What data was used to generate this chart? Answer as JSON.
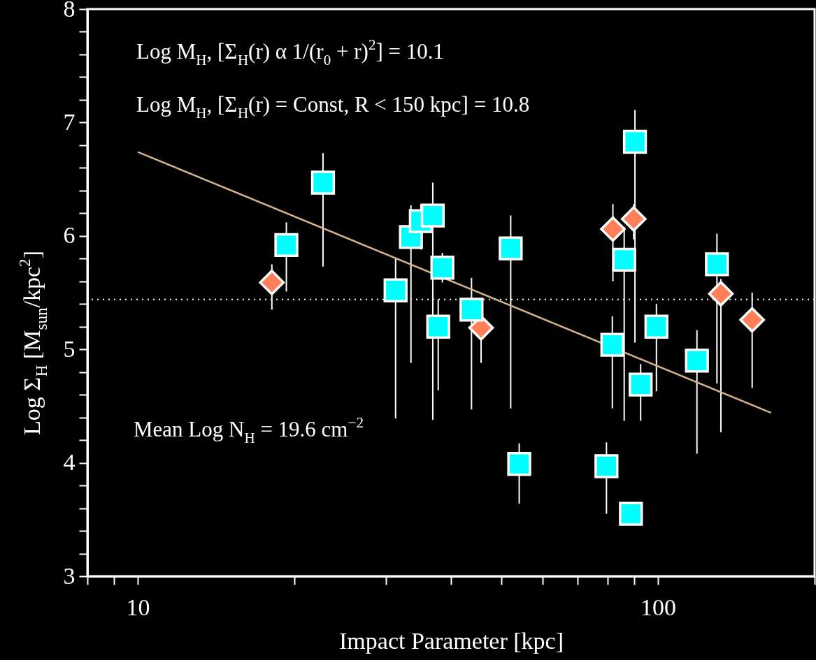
{
  "chart_data": {
    "type": "scatter",
    "xlabel": "Impact Parameter [kpc]",
    "ylabel": "Log Σ$_{H}$ [M$_{sun}$/kpc$^{2}$]",
    "log": "x",
    "xlim": [
      8,
      200
    ],
    "xticks": [
      {
        "value": 8,
        "label": null
      },
      {
        "value": 9,
        "label": null
      },
      10,
      {
        "value": 20,
        "label": null
      },
      {
        "value": 30,
        "label": null
      },
      {
        "value": 40,
        "label": null
      },
      {
        "value": 50,
        "label": null
      },
      {
        "value": 60,
        "label": null
      },
      {
        "value": 70,
        "label": null
      },
      {
        "value": 80,
        "label": null
      },
      {
        "value": 90,
        "label": null
      },
      100,
      {
        "value": 200,
        "label": null
      }
    ],
    "ylim": [
      3,
      8
    ],
    "yticks": [
      3,
      {
        "value": 3.2,
        "label": null
      },
      {
        "value": 3.4,
        "label": null
      },
      {
        "value": 3.6,
        "label": null
      },
      {
        "value": 3.8,
        "label": null
      },
      4,
      {
        "value": 4.2,
        "label": null
      },
      {
        "value": 4.4,
        "label": null
      },
      {
        "value": 4.6,
        "label": null
      },
      {
        "value": 4.8,
        "label": null
      },
      5,
      {
        "value": 5.2,
        "label": null
      },
      {
        "value": 5.4,
        "label": null
      },
      {
        "value": 5.6,
        "label": null
      },
      {
        "value": 5.8,
        "label": null
      },
      6,
      {
        "value": 6.2,
        "label": null
      },
      {
        "value": 6.4,
        "label": null
      },
      {
        "value": 6.6,
        "label": null
      },
      {
        "value": 6.8,
        "label": null
      },
      7,
      {
        "value": 7.2,
        "label": null
      },
      {
        "value": 7.4,
        "label": null
      },
      {
        "value": 7.6,
        "label": null
      },
      {
        "value": 7.8,
        "label": null
      },
      8
    ],
    "grid": false,
    "legend": false,
    "ref_lines": [
      {
        "axis": "y",
        "value": 5.44,
        "color": "#ffffff",
        "line_style": "dotted"
      }
    ],
    "annotations": [
      "Log M$_{H}$, [Σ$_{H}$(r) α 1/(r$_{0}$ + r)$^{2}$] = 10.1",
      "Log M$_{H}$, [Σ$_{H}$(r) = Const, R < 150 kpc] =  10.8",
      "Mean Log N$_{H}$ = 19.6 cm$^{−2}$"
    ],
    "series": [
      {
        "type": "line",
        "color": "#d2b48c",
        "marker": "none",
        "line_style": "solid",
        "x": [
          10,
          165
        ],
        "values": [
          6.74,
          4.44
        ]
      },
      {
        "type": "scatter",
        "color": "#ff7f59",
        "marker": "diamond",
        "x": [
          18.1,
          45.7,
          81.9,
          89.8,
          132.1,
          151.7
        ],
        "values": [
          5.59,
          5.19,
          6.06,
          6.15,
          5.49,
          5.26
        ],
        "errors": [
          [
            5.35,
            5.75
          ],
          [
            4.88,
            5.35
          ],
          [
            5.6,
            6.28
          ],
          [
            5.97,
            6.28
          ],
          [
            4.27,
            5.62
          ],
          [
            4.66,
            5.5
          ]
        ]
      },
      {
        "type": "scatter",
        "color": "#00ffff",
        "marker": "square",
        "x": [
          19.3,
          22.7,
          31.3,
          33.5,
          35.0,
          36.9,
          37.8,
          38.5,
          43.8,
          52.1,
          54.1,
          79.6,
          81.7,
          86.1,
          88.7,
          90.3,
          92.6,
          99.3,
          118.8,
          129.8
        ],
        "values": [
          5.92,
          6.47,
          5.52,
          5.99,
          6.13,
          6.18,
          5.2,
          5.72,
          5.35,
          5.89,
          3.99,
          3.97,
          5.04,
          5.79,
          3.55,
          6.83,
          4.69,
          5.2,
          4.9,
          5.75
        ],
        "errors": [
          [
            5.51,
            6.12
          ],
          [
            5.73,
            6.73
          ],
          [
            4.39,
            5.8
          ],
          [
            4.88,
            6.27
          ],
          [
            5.88,
            6.28
          ],
          [
            4.38,
            6.47
          ],
          [
            4.64,
            5.44
          ],
          [
            5.59,
            5.85
          ],
          [
            4.47,
            5.63
          ],
          [
            4.48,
            6.18
          ],
          [
            3.64,
            4.17
          ],
          [
            3.55,
            4.18
          ],
          [
            4.48,
            5.29
          ],
          [
            4.37,
            6.08
          ],
          null,
          [
            5.06,
            7.11
          ],
          [
            4.37,
            4.87
          ],
          [
            4.63,
            5.4
          ],
          [
            4.08,
            5.17
          ],
          [
            4.7,
            6.02
          ]
        ]
      }
    ]
  }
}
